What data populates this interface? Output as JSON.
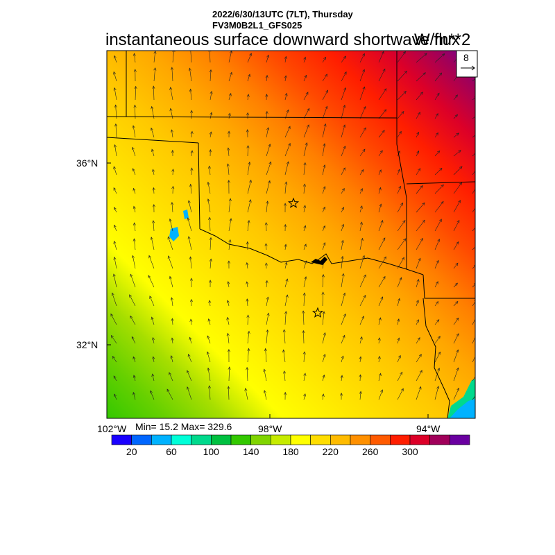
{
  "header": {
    "date_line": "2022/6/30/13UTC (7LT), Thursday",
    "model_line": "FV3M0B2L1_GFS025",
    "title": "instantaneous surface downward shortwave flux",
    "units": "W/m**2"
  },
  "vector_key": {
    "label": "8"
  },
  "axes": {
    "lat_labels": [
      "36°N",
      "32°N"
    ],
    "lon_labels": [
      "102°W",
      "98°W",
      "94°W"
    ]
  },
  "stats": {
    "text": "Min= 15.2 Max= 329.6"
  },
  "colorbar": {
    "tick_labels": [
      "20",
      "60",
      "100",
      "140",
      "180",
      "220",
      "260",
      "300"
    ],
    "colors": [
      "#1a00ff",
      "#0066ff",
      "#00b2ff",
      "#00ffd8",
      "#00d98c",
      "#00c040",
      "#33c800",
      "#80d400",
      "#c6eb00",
      "#ffff00",
      "#ffdd00",
      "#ffbb00",
      "#ff9000",
      "#ff5a00",
      "#ff1e00",
      "#dc0028",
      "#a0005a",
      "#6a00a0"
    ]
  },
  "map": {
    "markers": [
      {
        "name": "station-star-north",
        "symbol": "star"
      },
      {
        "name": "station-star-south",
        "symbol": "star"
      }
    ]
  }
}
